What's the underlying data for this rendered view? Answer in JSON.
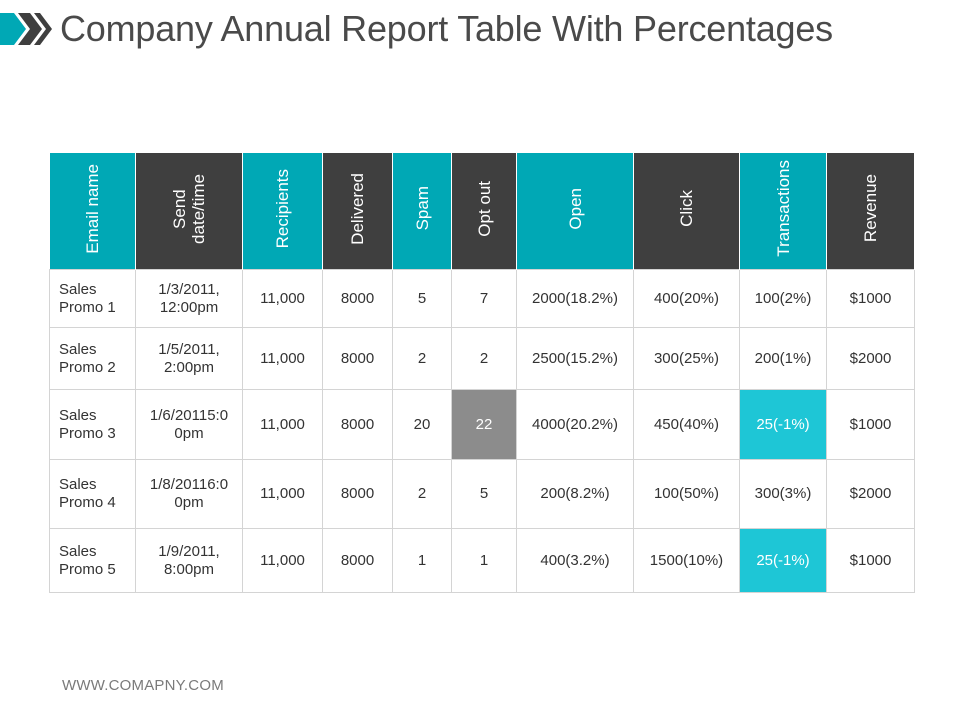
{
  "title": "Company Annual Report Table With Percentages",
  "footer": "WWW.COMAPNY.COM",
  "colors": {
    "teal": "#00a8b5",
    "dark": "#3f3f3f",
    "highlight_teal": "#1ec6d6",
    "highlight_gray": "#8c8c8c"
  },
  "columns": [
    {
      "label": "Email name"
    },
    {
      "label": "Send\ndate/time"
    },
    {
      "label": "Recipients"
    },
    {
      "label": "Delivered"
    },
    {
      "label": "Spam"
    },
    {
      "label": "Opt out"
    },
    {
      "label": "Open"
    },
    {
      "label": "Click"
    },
    {
      "label": "Transactions"
    },
    {
      "label": "Revenue"
    }
  ],
  "rows": [
    {
      "email": "Sales\nPromo 1",
      "send": "1/3/2011,\n12:00pm",
      "recipients": "11,000",
      "delivered": "8000",
      "spam": "5",
      "optout": "7",
      "open": "2000(18.2%)",
      "click": "400(20%)",
      "transactions": "100(2%)",
      "revenue": "$1000"
    },
    {
      "email": "Sales\nPromo 2",
      "send": "1/5/2011,\n2:00pm",
      "recipients": "11,000",
      "delivered": "8000",
      "spam": "2",
      "optout": "2",
      "open": "2500(15.2%)",
      "click": "300(25%)",
      "transactions": "200(1%)",
      "revenue": "$2000"
    },
    {
      "email": "Sales\nPromo 3",
      "send": "1/6/20115:0\n0pm",
      "recipients": "11,000",
      "delivered": "8000",
      "spam": "20",
      "optout": "22",
      "open": "4000(20.2%)",
      "click": "450(40%)",
      "transactions": "25(-1%)",
      "revenue": "$1000"
    },
    {
      "email": "Sales\nPromo 4",
      "send": "1/8/20116:0\n0pm",
      "recipients": "11,000",
      "delivered": "8000",
      "spam": "2",
      "optout": "5",
      "open": "200(8.2%)",
      "click": "100(50%)",
      "transactions": "300(3%)",
      "revenue": "$2000"
    },
    {
      "email": "Sales\nPromo 5",
      "send": "1/9/2011,\n8:00pm",
      "recipients": "11,000",
      "delivered": "8000",
      "spam": "1",
      "optout": "1",
      "open": "400(3.2%)",
      "click": "1500(10%)",
      "transactions": "25(-1%)",
      "revenue": "$1000"
    }
  ]
}
